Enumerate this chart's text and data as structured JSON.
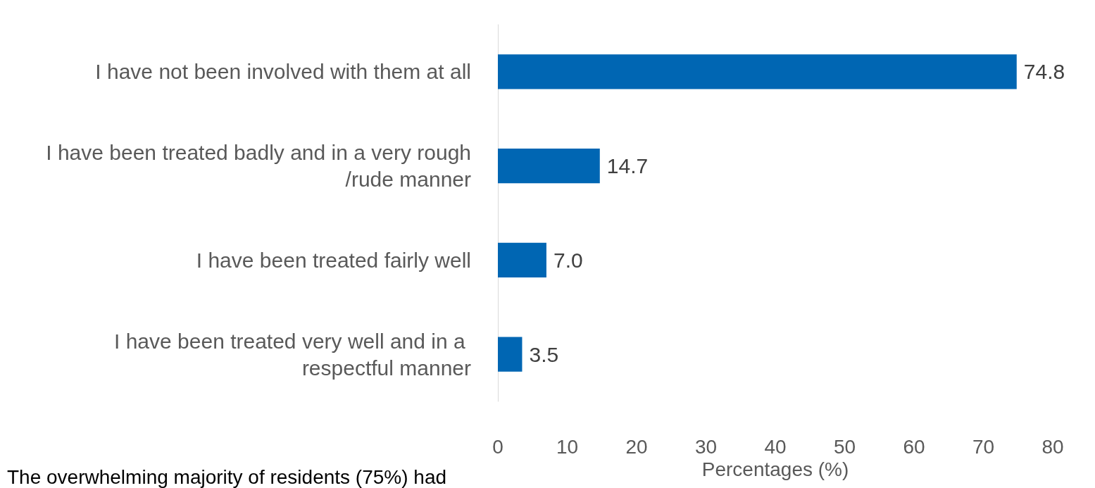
{
  "chart_data": {
    "type": "bar",
    "orientation": "horizontal",
    "categories": [
      "I have not been involved with them at all",
      "I have been treated badly and in a very rough/rude manner",
      "I have been treated fairly well",
      "I have been treated very well and in a respectful manner"
    ],
    "values": [
      74.8,
      14.7,
      7.0,
      3.5
    ],
    "color": "#0066b3",
    "xlabel": "Percentages (%)",
    "xlim": [
      0,
      80
    ],
    "xticks": [
      0,
      10,
      20,
      30,
      40,
      50,
      60,
      70,
      80
    ],
    "grid": false,
    "value_labels": [
      "74.8",
      "14.7",
      "7.0",
      "3.5"
    ],
    "annotations": [
      "The overwhelming majority of residents (75%) had"
    ]
  }
}
